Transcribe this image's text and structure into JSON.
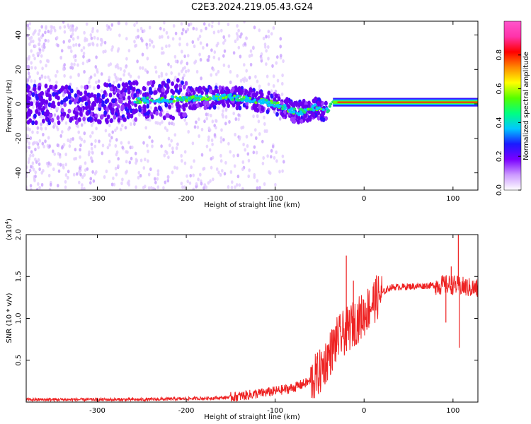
{
  "title": "C2E3.2024.219.05.43.G24",
  "chart_data": [
    {
      "type": "heatmap",
      "name": "spectrogram",
      "xlabel": "Height of straight line (km)",
      "ylabel": "Frequency (Hz)",
      "xlim": [
        -380,
        128
      ],
      "ylim": [
        -50,
        48
      ],
      "xticks": [
        -300,
        -200,
        -100,
        0,
        100
      ],
      "yticks": [
        -40,
        -20,
        0,
        20,
        40
      ],
      "colorbar": {
        "label": "Normalized spectral amplitude",
        "range": [
          0,
          1
        ],
        "ticks": [
          0.0,
          0.2,
          0.4,
          0.6,
          0.8
        ],
        "tick_labels": [
          "0.0",
          "0.2",
          "0.4",
          "0.6",
          "0.8"
        ],
        "colors": [
          "#ffffff",
          "#cc99ff",
          "#7a00ff",
          "#1a1aff",
          "#00c8ff",
          "#00ff80",
          "#55ff00",
          "#ffff00",
          "#ff8800",
          "#ff0000",
          "#ff33aa",
          "#ff55cc"
        ]
      },
      "ridge": {
        "x": [
          -380,
          -300,
          -250,
          -200,
          -170,
          -150,
          -130,
          -110,
          -95,
          -85,
          -75,
          -65,
          -55,
          -45,
          -40,
          -35,
          -30,
          -20,
          0,
          50,
          100,
          128
        ],
        "f": [
          0,
          0,
          2,
          3,
          4,
          4,
          3,
          1,
          -1,
          -3,
          -5,
          -4,
          -2,
          -5,
          -3,
          0,
          0,
          1,
          1,
          1,
          1,
          1
        ]
      }
    },
    {
      "type": "line",
      "name": "snr",
      "xlabel": "Height of straight line (km)",
      "ylabel": "SNR (10 * v/v)",
      "multiplier": "(x10",
      "multiplier_exp": "4",
      "multiplier_close": ")",
      "xlim": [
        -380,
        128
      ],
      "ylim": [
        0,
        2.0
      ],
      "xticks": [
        -300,
        -200,
        -100,
        0,
        100
      ],
      "yticks": [
        0.5,
        1.0,
        1.5,
        2.0
      ],
      "ytick_labels": [
        "0.5",
        "1.0",
        "1.5",
        "2.0"
      ],
      "color": "#ee2222",
      "x": [
        -380,
        -300,
        -250,
        -200,
        -160,
        -140,
        -120,
        -100,
        -80,
        -60,
        -50,
        -40,
        -30,
        -20,
        -10,
        0,
        10,
        20,
        30,
        50,
        70,
        90,
        100,
        110,
        128
      ],
      "y": [
        0.03,
        0.03,
        0.03,
        0.04,
        0.05,
        0.07,
        0.1,
        0.13,
        0.17,
        0.25,
        0.35,
        0.55,
        0.75,
        0.85,
        0.95,
        1.05,
        1.2,
        1.3,
        1.37,
        1.38,
        1.39,
        1.4,
        1.4,
        1.38,
        1.35
      ],
      "spikes": [
        {
          "x": -20,
          "y": 1.75
        },
        {
          "x": -12,
          "y": 1.45
        },
        {
          "x": 98,
          "y": 1.62
        },
        {
          "x": 106,
          "y": 2.0
        },
        {
          "x": 107,
          "y": 0.65
        },
        {
          "x": 92,
          "y": 0.95
        }
      ]
    }
  ]
}
